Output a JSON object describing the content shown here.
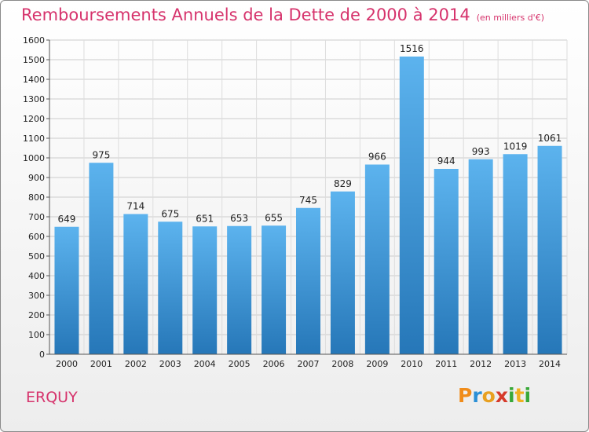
{
  "header": {
    "title": "Remboursements Annuels de la Dette de 2000 à 2014",
    "subtitle": "(en milliers d'€)"
  },
  "commune": "ERQUY",
  "logo": {
    "letters": [
      "P",
      "r",
      "o",
      "x",
      "i",
      "t",
      "i"
    ],
    "colors": [
      "#f08c1a",
      "#2a8fd6",
      "#e8a020",
      "#d63a2a",
      "#38a838",
      "#f0b020",
      "#38a838"
    ]
  },
  "chart_data": {
    "type": "bar",
    "categories": [
      "2000",
      "2001",
      "2002",
      "2003",
      "2004",
      "2005",
      "2006",
      "2007",
      "2008",
      "2009",
      "2010",
      "2011",
      "2012",
      "2013",
      "2014"
    ],
    "values": [
      649,
      975,
      714,
      675,
      651,
      653,
      655,
      745,
      829,
      966,
      1516,
      944,
      993,
      1019,
      1061
    ],
    "data_labels": [
      "649",
      "975",
      "714",
      "675",
      "651",
      "653",
      "655",
      "745",
      "829",
      "966",
      "1516",
      "944",
      "993",
      "1019",
      "1061"
    ],
    "ylim": [
      0,
      1600
    ],
    "yticks": [
      0,
      100,
      200,
      300,
      400,
      500,
      600,
      700,
      800,
      900,
      1000,
      1100,
      1200,
      1300,
      1400,
      1500,
      1600
    ],
    "grid": true,
    "bar_color_top": "#5cb3ee",
    "bar_color_bottom": "#2677b8"
  }
}
